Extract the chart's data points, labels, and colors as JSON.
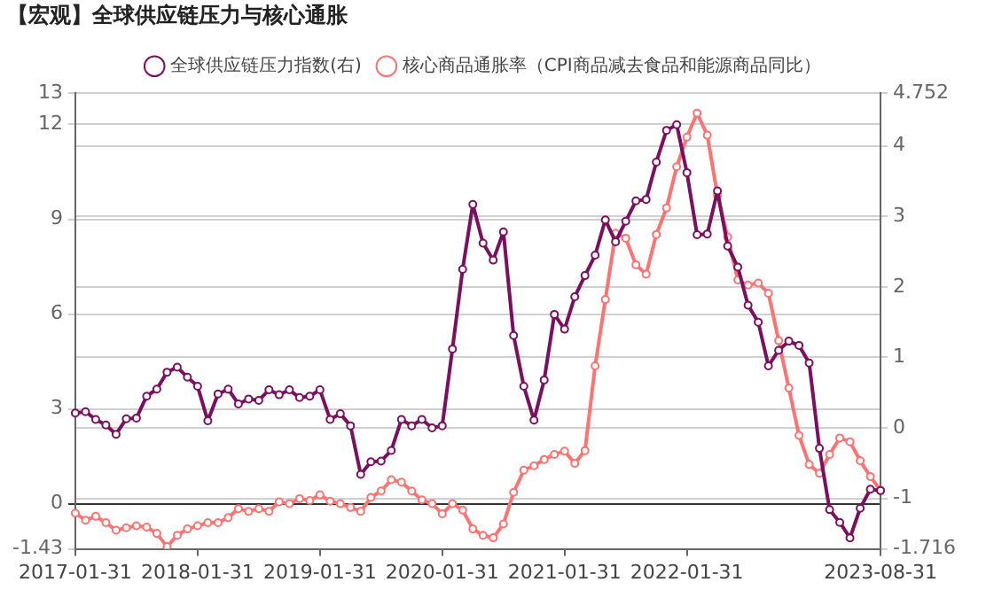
{
  "chart_data": {
    "type": "line",
    "title": "【宏观】全球供应链压力与核心通胀",
    "categories": [
      "2017-01-31",
      null,
      null,
      null,
      null,
      null,
      null,
      null,
      null,
      null,
      null,
      null,
      "2018-01-31",
      null,
      null,
      null,
      null,
      null,
      null,
      null,
      null,
      null,
      null,
      null,
      "2019-01-31",
      null,
      null,
      null,
      null,
      null,
      null,
      null,
      null,
      null,
      null,
      null,
      "2020-01-31",
      null,
      null,
      null,
      null,
      null,
      null,
      null,
      null,
      null,
      null,
      null,
      "2021-01-31",
      null,
      null,
      null,
      null,
      null,
      null,
      null,
      null,
      null,
      null,
      null,
      "2022-01-31",
      null,
      null,
      null,
      null,
      null,
      null,
      null,
      null,
      null,
      null,
      null,
      null,
      null,
      null,
      null,
      null,
      null,
      null,
      "2023-08-31"
    ],
    "series": [
      {
        "name": "全球供应链压力指数(右)",
        "color": "#7b1060",
        "axis": "y2",
        "values": [
          0.21,
          0.23,
          0.12,
          0.04,
          -0.09,
          0.13,
          0.14,
          0.45,
          0.55,
          0.79,
          0.86,
          0.72,
          0.59,
          0.1,
          0.48,
          0.55,
          0.34,
          0.41,
          0.39,
          0.54,
          0.47,
          0.54,
          0.43,
          0.45,
          0.54,
          0.12,
          0.2,
          0.03,
          -0.66,
          -0.48,
          -0.47,
          -0.32,
          0.12,
          0.03,
          0.12,
          0.0,
          0.03,
          1.12,
          2.25,
          3.17,
          2.62,
          2.38,
          2.78,
          1.31,
          0.59,
          0.11,
          0.68,
          1.61,
          1.4,
          1.86,
          2.16,
          2.45,
          2.95,
          2.64,
          2.93,
          3.22,
          3.24,
          3.77,
          4.22,
          4.3,
          3.62,
          2.74,
          2.75,
          3.36,
          2.58,
          2.28,
          1.74,
          1.5,
          0.88,
          1.1,
          1.23,
          1.17,
          0.92,
          -0.29,
          -1.16,
          -1.34,
          -1.56,
          -1.14,
          -0.87,
          -0.89
        ]
      },
      {
        "name": "核心商品通胀率（CPI商品减去食品和能源商品同比）",
        "color": "#ff7373",
        "values": [
          -0.3,
          -0.52,
          -0.4,
          -0.6,
          -0.84,
          -0.76,
          -0.7,
          -0.74,
          -0.94,
          -1.36,
          -1.0,
          -0.8,
          -0.7,
          -0.6,
          -0.6,
          -0.44,
          -0.16,
          -0.24,
          -0.16,
          -0.24,
          0.06,
          0.0,
          0.16,
          0.1,
          0.28,
          0.08,
          0.0,
          -0.12,
          -0.24,
          0.2,
          0.4,
          0.76,
          0.68,
          0.4,
          0.12,
          0.0,
          -0.32,
          0.0,
          -0.2,
          -0.8,
          -1.0,
          -1.08,
          -0.64,
          0.36,
          1.06,
          1.2,
          1.4,
          1.56,
          1.66,
          1.28,
          1.68,
          4.36,
          6.46,
          8.56,
          8.4,
          7.56,
          7.26,
          8.52,
          9.36,
          10.66,
          11.6,
          12.36,
          11.66,
          9.76,
          8.44,
          7.08,
          6.92,
          6.98,
          6.66,
          5.16,
          3.66,
          2.16,
          1.24,
          0.96,
          1.56,
          2.08,
          1.96,
          1.36,
          0.86,
          0.42
        ]
      }
    ],
    "ylim": [
      -1.43,
      13
    ],
    "yticks": [
      -1.43,
      0,
      3,
      6,
      9,
      12,
      13
    ],
    "y2lim": [
      -1.716,
      4.752
    ],
    "y2ticks": [
      -1.716,
      -1,
      0,
      1,
      2,
      3,
      4,
      4.752
    ],
    "grid": true,
    "legend": "top",
    "marker": "circle",
    "line_style": "solid"
  }
}
